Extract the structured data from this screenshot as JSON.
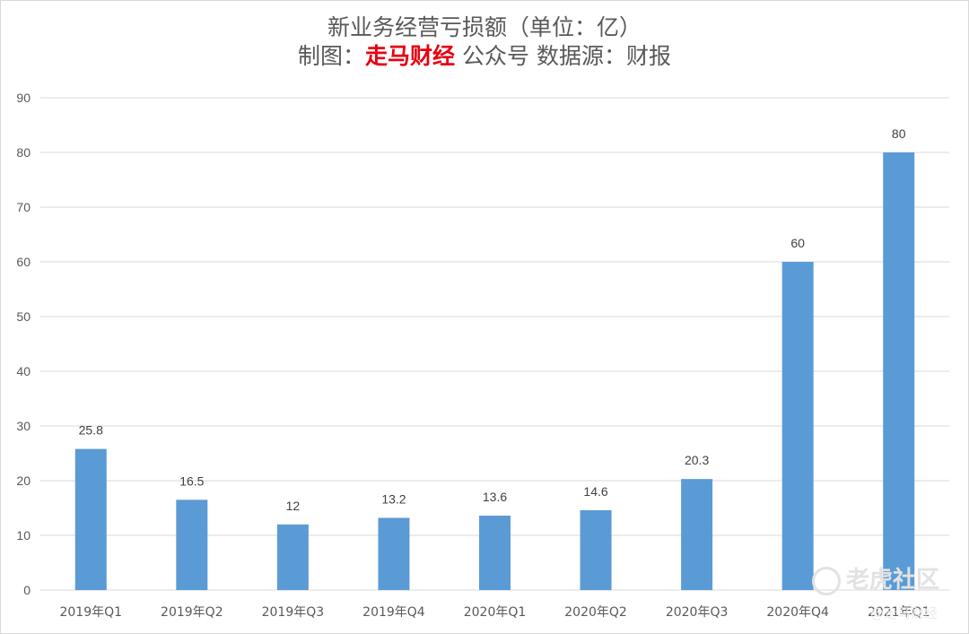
{
  "title": {
    "line1": "新业务经营亏损额（单位：亿）",
    "line2_prefix": "制图：",
    "line2_brand": "走马财经",
    "line2_suffix": " 公众号  数据源：财报"
  },
  "watermark": {
    "text": "老虎社区",
    "sub": "@走马财经"
  },
  "colors": {
    "bar": "#5b9bd5",
    "grid": "#d9d9d9",
    "axis_text": "#595959",
    "brand": "#e60012"
  },
  "chart_data": {
    "type": "bar",
    "categories": [
      "2019年Q1",
      "2019年Q2",
      "2019年Q3",
      "2019年Q4",
      "2020年Q1",
      "2020年Q2",
      "2020年Q3",
      "2020年Q4",
      "2021年Q1"
    ],
    "values": [
      25.8,
      16.5,
      12,
      13.2,
      13.6,
      14.6,
      20.3,
      60,
      80
    ],
    "data_labels": [
      "25.8",
      "16.5",
      "12",
      "13.2",
      "13.6",
      "14.6",
      "20.3",
      "60",
      "80"
    ],
    "ylim": [
      0,
      90
    ],
    "yticks": [
      0,
      10,
      20,
      30,
      40,
      50,
      60,
      70,
      80,
      90
    ],
    "grid": true,
    "legend": "none",
    "title": "新业务经营亏损额（单位：亿）",
    "xlabel": "",
    "ylabel": ""
  }
}
